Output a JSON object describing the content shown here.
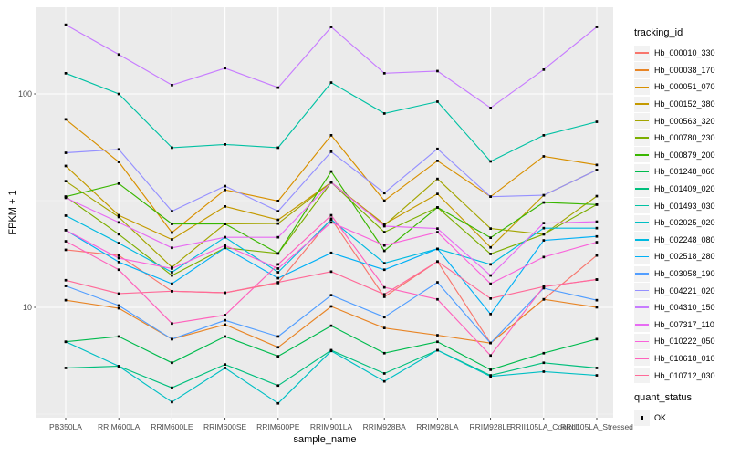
{
  "chart_data": {
    "type": "line",
    "title": "",
    "xlabel": "sample_name",
    "ylabel": "FPKM + 1",
    "y_scale": "log10",
    "ylim": [
      2.9,
      260
    ],
    "y_ticks": [
      {
        "label": "100",
        "value": 100
      },
      {
        "label": "10",
        "value": 10
      }
    ],
    "y_minor_gridlines": [
      31.62,
      3.162
    ],
    "grid": true,
    "panel_bg": "#EBEBEB",
    "gridline_color": "#FFFFFF",
    "axis_text_color": "#4D4D4D",
    "tick_mark_color": "#333333",
    "point_marker": {
      "shape": "filled-square",
      "color": "#000000",
      "size": 2.7
    },
    "categories": [
      "PB350LA",
      "RRIM600LA",
      "RRIM600LE",
      "RRIM600SE",
      "RRIM600PE",
      "RRIM901LA",
      "RRIM928BA",
      "RRIM928LA",
      "RRIM928LE",
      "RRII105LA_Control",
      "RRII105LA_Stressed"
    ],
    "series": [
      {
        "name": "Hb_000010_330",
        "color": "#F8766D",
        "values": [
          18.6,
          17.5,
          11.9,
          11.7,
          13.0,
          26.0,
          11.2,
          16.4,
          6.8,
          10.9,
          17.5
        ]
      },
      {
        "name": "Hb_000038_170",
        "color": "#E88526",
        "values": [
          10.8,
          9.9,
          7.1,
          8.3,
          6.5,
          10.1,
          8.0,
          7.4,
          6.8,
          10.9,
          10.0
        ]
      },
      {
        "name": "Hb_000051_070",
        "color": "#D89000",
        "values": [
          76,
          48,
          22.4,
          35.5,
          31.5,
          64,
          31.6,
          48.6,
          33,
          51,
          46.5
        ]
      },
      {
        "name": "Hb_000152_380",
        "color": "#C49A00",
        "values": [
          46,
          27,
          20.8,
          29.7,
          25.7,
          38.5,
          24.5,
          34,
          19.1,
          33.5,
          44
        ]
      },
      {
        "name": "Hb_000563_320",
        "color": "#A3A500",
        "values": [
          39,
          26.5,
          15.4,
          24.6,
          24.7,
          38.5,
          24.2,
          40,
          23.4,
          22,
          33.2
        ]
      },
      {
        "name": "Hb_000780_230",
        "color": "#7CAE00",
        "values": [
          33,
          22,
          14.1,
          19,
          17.9,
          38.5,
          22.5,
          29.4,
          17.8,
          22,
          30.3
        ]
      },
      {
        "name": "Hb_000879_200",
        "color": "#39B600",
        "values": [
          33,
          38,
          24.6,
          24.6,
          17.9,
          43.3,
          18.4,
          29.4,
          21.2,
          31,
          30.3
        ]
      },
      {
        "name": "Hb_001248_060",
        "color": "#00BB4E",
        "values": [
          6.9,
          7.3,
          5.5,
          7.3,
          5.9,
          8.2,
          6.1,
          6.9,
          5.1,
          6.1,
          7.1
        ]
      },
      {
        "name": "Hb_001409_020",
        "color": "#00BF7D",
        "values": [
          5.2,
          5.3,
          4.2,
          5.4,
          4.3,
          6.3,
          4.9,
          6.3,
          4.8,
          5.5,
          5.2
        ]
      },
      {
        "name": "Hb_001493_030",
        "color": "#00C1A3",
        "values": [
          125,
          100,
          56,
          58,
          56,
          113,
          81,
          92,
          48.3,
          64,
          74
        ]
      },
      {
        "name": "Hb_002025_020",
        "color": "#00BFC4",
        "values": [
          6.9,
          5.3,
          3.6,
          5.2,
          3.55,
          6.25,
          4.5,
          6.3,
          4.75,
          5.0,
          4.8
        ]
      },
      {
        "name": "Hb_002248_080",
        "color": "#00BAE0",
        "values": [
          26.9,
          20,
          14.6,
          21.3,
          14.6,
          25.8,
          16.1,
          18.8,
          15.9,
          23.5,
          23.5
        ]
      },
      {
        "name": "Hb_002518_280",
        "color": "#00B0F6",
        "values": [
          23,
          16.3,
          12.9,
          19,
          13.7,
          18,
          15,
          18.8,
          9.3,
          20.6,
          21.5
        ]
      },
      {
        "name": "Hb_003058_190",
        "color": "#529EFF",
        "values": [
          12.6,
          10.2,
          7.1,
          8.7,
          7.3,
          11.4,
          9.0,
          13.1,
          6.8,
          12.3,
          10.8
        ]
      },
      {
        "name": "Hb_004221_020",
        "color": "#9590FF",
        "values": [
          53,
          55,
          28.2,
          37,
          28.2,
          53.6,
          34.3,
          55.3,
          33,
          33.5,
          44
        ]
      },
      {
        "name": "Hb_004310_150",
        "color": "#C77CFF",
        "values": [
          211,
          153,
          110,
          132,
          107,
          206,
          125,
          128,
          86,
          130,
          206
        ]
      },
      {
        "name": "Hb_007317_110",
        "color": "#E76BF3",
        "values": [
          32.6,
          25,
          19,
          21.3,
          21.3,
          38.5,
          24,
          23.4,
          14.1,
          24.8,
          25.2
        ]
      },
      {
        "name": "Hb_010222_050",
        "color": "#FA62DB",
        "values": [
          23,
          17,
          15.2,
          19.5,
          15.2,
          25,
          19.5,
          22.5,
          12.9,
          17.2,
          20.2
        ]
      },
      {
        "name": "Hb_010618_010",
        "color": "#FF62BC",
        "values": [
          20.4,
          15,
          8.4,
          9.2,
          15.9,
          27,
          12.4,
          10.9,
          5.95,
          12.5,
          13.5
        ]
      },
      {
        "name": "Hb_010712_030",
        "color": "#FF6A98",
        "values": [
          13.4,
          11.6,
          11.9,
          11.7,
          13.1,
          14.7,
          11.5,
          16.4,
          11.0,
          12.5,
          13.5
        ]
      }
    ],
    "legend_tracking": {
      "title": "tracking_id",
      "position": "right"
    },
    "legend_quant": {
      "title": "quant_status",
      "items": [
        {
          "label": "OK",
          "marker": "filled-square",
          "color": "#000000"
        }
      ]
    }
  }
}
